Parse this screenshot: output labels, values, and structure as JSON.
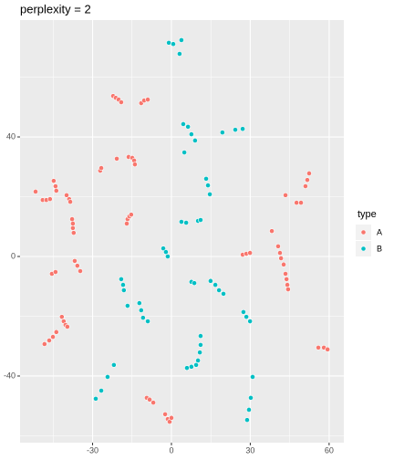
{
  "chart_data": {
    "type": "scatter",
    "title": "perplexity = 2",
    "xlim": [
      -57.6,
      65.6
    ],
    "ylim": [
      -62.3,
      79.1
    ],
    "xticks": [
      -30,
      0,
      30,
      60
    ],
    "yticks": [
      -40,
      0,
      40
    ],
    "xminor": [
      -45,
      -15,
      15,
      45
    ],
    "yminor": [
      -60,
      -20,
      20,
      60
    ],
    "grid": true,
    "legend_title": "type",
    "legend_position": "right",
    "series": [
      {
        "name": "A",
        "color": "#F8766D",
        "x": [
          -22.2,
          -21.2,
          -20.1,
          -19.1,
          -11.5,
          -10.4,
          -9.0,
          -20.8,
          -27.1,
          -26.7,
          -16.3,
          -14.9,
          -14.2,
          -13.9,
          -17.0,
          -16.7,
          -16.0,
          -15.3,
          -51.7,
          -49,
          -47.6,
          -46.2,
          -44.8,
          -44.1,
          -43.8,
          -39.9,
          -38.9,
          -38.5,
          -37.8,
          -37.5,
          -37.5,
          -37.2,
          -36.8,
          -35.8,
          -34.7,
          -45.5,
          -44.1,
          -41.7,
          -41,
          -40.3,
          -39.6,
          -48.3,
          -46.5,
          -45.1,
          -43.8,
          -9.4,
          -8.3,
          -6.9,
          -2.4,
          -1.4,
          -0.7,
          0,
          27.1,
          28.5,
          29.9,
          38.2,
          40.6,
          41.3,
          41.7,
          42.7,
          43.4,
          43.8,
          44.1,
          44.4,
          43.4,
          47.6,
          49.3,
          51.0,
          51.7,
          52.4,
          55.9,
          58,
          59.4
        ],
        "values": [
          53.7,
          53.1,
          52.5,
          51.6,
          51.3,
          52.2,
          52.5,
          32.7,
          28.7,
          29.6,
          33.3,
          33.0,
          32.1,
          30.8,
          11.0,
          12.5,
          13.4,
          14.0,
          21.7,
          18.9,
          18.9,
          19.2,
          25.3,
          23.5,
          22.0,
          20.5,
          19.2,
          18.3,
          12.5,
          11.0,
          9.5,
          7.9,
          -1.5,
          -3.1,
          -4.9,
          -5.8,
          -5.2,
          -20.2,
          -21.7,
          -22.9,
          -23.5,
          -29.3,
          -28.1,
          -26.9,
          -25.3,
          -47.3,
          -47.9,
          -48.9,
          -52.8,
          -54.4,
          -55.3,
          -54.0,
          0.6,
          0.9,
          1.2,
          8.5,
          3.4,
          1.2,
          -0.6,
          -2.7,
          -5.8,
          -7.6,
          -9.5,
          -11.0,
          20.5,
          18.0,
          18.0,
          23.5,
          25.6,
          27.8,
          -30.5,
          -30.5,
          -31.1
        ]
      },
      {
        "name": "B",
        "color": "#00BFC4",
        "x": [
          -1,
          0.7,
          3.8,
          3.1,
          4.5,
          6.3,
          7.6,
          9.0,
          4.9,
          19.4,
          24.3,
          27.1,
          13.2,
          13.9,
          14.6,
          3.8,
          5.6,
          10.1,
          11.1,
          -3.1,
          -2.1,
          -1.4,
          -19.1,
          -18.4,
          -18.1,
          -16.7,
          -12.2,
          -11.5,
          -10.8,
          -9.0,
          7.6,
          8.7,
          14.9,
          16.7,
          18.1,
          19.8,
          27.4,
          28.5,
          29.9,
          11.1,
          11.1,
          10.8,
          10.1,
          5.9,
          7.6,
          9.4,
          -28.8,
          -26.7,
          -24.3,
          -21.9,
          28.8,
          29.5,
          30.2,
          30.9
        ],
        "values": [
          71.5,
          71.1,
          72.4,
          67.8,
          44.3,
          43.4,
          40.9,
          38.8,
          34.8,
          41.5,
          42.4,
          42.7,
          26.0,
          23.8,
          20.8,
          11.6,
          11.3,
          11.9,
          12.2,
          2.7,
          1.5,
          0,
          -7.6,
          -9.5,
          -11.3,
          -16.5,
          -15.6,
          -18.0,
          -20.5,
          -21.7,
          -8.5,
          -8.9,
          -8.2,
          -9.5,
          -11.3,
          -12.5,
          -18.6,
          -20.2,
          -21.7,
          -26.6,
          -29.6,
          -32.1,
          -34.8,
          -37.3,
          -36.9,
          -36.3,
          -47.6,
          -44.9,
          -40.3,
          -36.3,
          -54.7,
          -51.3,
          -47.3,
          -40.3
        ]
      }
    ]
  }
}
